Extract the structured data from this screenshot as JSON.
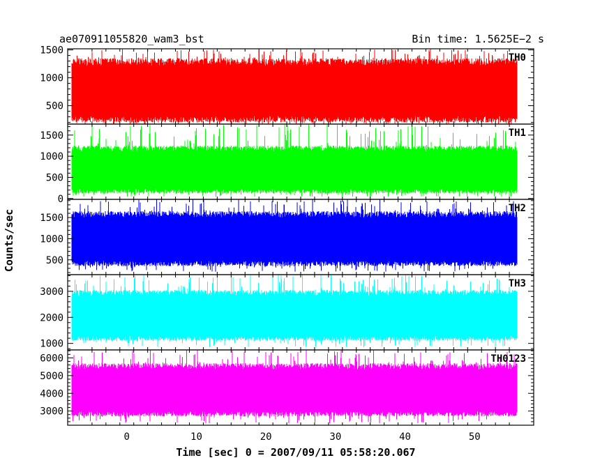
{
  "header": {
    "left_title": "ae070911055820_wam3_bst",
    "right_title": "Bin time: 1.5625E−2 s"
  },
  "chart_data": {
    "type": "line",
    "title": "ae070911055820_wam3_bst",
    "subtitle": "Bin time: 1.5625E−2 s",
    "xlabel": "Time [sec] 0 = 2007/09/11 05:58:20.067",
    "ylabel": "Counts/sec",
    "xlim": [
      -8.5,
      58.5
    ],
    "data_x_range": [
      -7.9,
      56.1
    ],
    "x_ticks": [
      0,
      10,
      20,
      30,
      40,
      50
    ],
    "grid": false,
    "panels": [
      {
        "name": "TH0",
        "color": "#ff0000",
        "ylim": [
          170,
          1520
        ],
        "y_ticks": [
          500,
          1000,
          1500
        ],
        "typical_low": 200,
        "typical_high": 1350,
        "min": 150,
        "max": 1520
      },
      {
        "name": "TH1",
        "color": "#00ff00",
        "ylim": [
          -20,
          1760
        ],
        "y_ticks": [
          0,
          500,
          1000,
          1500
        ],
        "typical_low": 120,
        "typical_high": 1250,
        "min": 40,
        "max": 1750
      },
      {
        "name": "TH2",
        "color": "#0000ff",
        "ylim": [
          150,
          1930
        ],
        "y_ticks": [
          500,
          1000,
          1500
        ],
        "typical_low": 350,
        "typical_high": 1650,
        "min": 220,
        "max": 1930
      },
      {
        "name": "TH3",
        "color": "#00ffff",
        "ylim": [
          750,
          3640
        ],
        "y_ticks": [
          1000,
          2000,
          3000
        ],
        "typical_low": 1100,
        "typical_high": 3050,
        "min": 850,
        "max": 3640
      },
      {
        "name": "TH0123",
        "color": "#ff00ff",
        "ylim": [
          2200,
          6450
        ],
        "y_ticks": [
          3000,
          4000,
          5000,
          6000
        ],
        "typical_low": 2700,
        "typical_high": 5700,
        "min": 2300,
        "max": 6450
      }
    ]
  }
}
